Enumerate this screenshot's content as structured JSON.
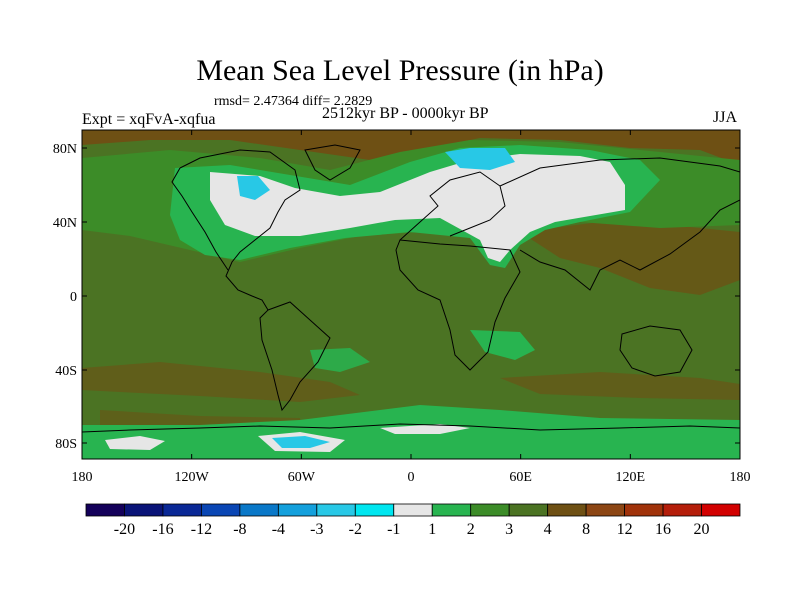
{
  "title": "Mean Sea Level Pressure (in hPa)",
  "stats_line": "rmsd= 2.47364 diff= 2.2829",
  "experiment_label": "Expt = xqFvA-xqfua",
  "period_label": "2512kyr BP - 0000kyr BP",
  "season_label": "JJA",
  "map": {
    "lat_ticks": [
      "80N",
      "40N",
      "0",
      "40S",
      "80S"
    ],
    "lon_ticks": [
      "180",
      "120W",
      "60W",
      "0",
      "60E",
      "120E",
      "180"
    ]
  },
  "colorbar": {
    "labels": [
      "-20",
      "-16",
      "-12",
      "-8",
      "-4",
      "-3",
      "-2",
      "-1",
      "1",
      "2",
      "3",
      "4",
      "8",
      "12",
      "16",
      "20"
    ],
    "colors": [
      "#14005a",
      "#0a1478",
      "#0a2896",
      "#0a46b4",
      "#0a78c8",
      "#14a0dc",
      "#28c8e6",
      "#00e6f0",
      "#e6e6e6",
      "#28b450",
      "#3c8c28",
      "#4b7323",
      "#6e5014",
      "#8c4614",
      "#a0320a",
      "#b41e0a",
      "#d20000"
    ]
  },
  "colors": {
    "ocean_base": "#4b7323",
    "land_mid": "#3c8c28",
    "bright_green": "#28b450",
    "near_zero": "#e6e6e6",
    "light_blue": "#28c8e6",
    "brown": "#6e5014",
    "coast": "#000000"
  }
}
